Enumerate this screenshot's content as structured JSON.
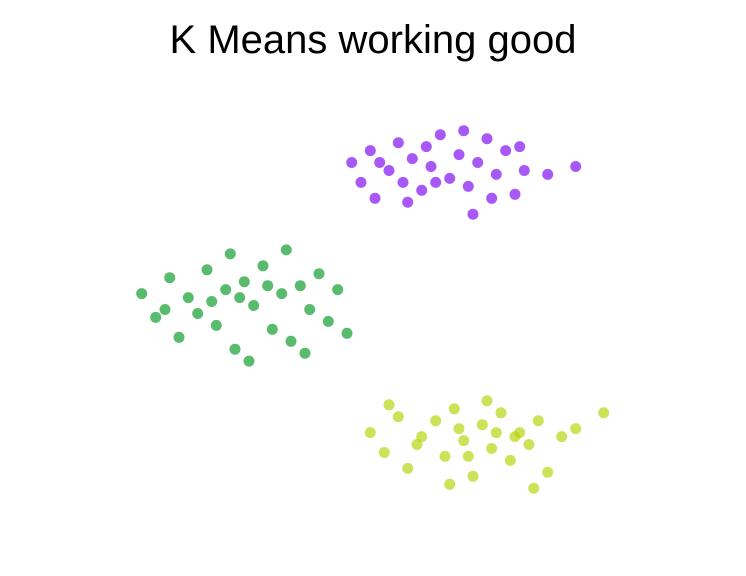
{
  "title": "K Means working good",
  "chart_data": {
    "type": "scatter",
    "title": "K Means working good",
    "xlabel": "",
    "ylabel": "",
    "grid": false,
    "axes_visible": false,
    "series": [
      {
        "color": "#7a00f0",
        "points": [
          [
            -2.0,
            3.5
          ],
          [
            -1.8,
            3.0
          ],
          [
            -1.6,
            3.8
          ],
          [
            -1.5,
            2.6
          ],
          [
            -1.2,
            3.3
          ],
          [
            -1.0,
            4.0
          ],
          [
            -0.9,
            3.0
          ],
          [
            -0.7,
            3.6
          ],
          [
            -0.5,
            2.8
          ],
          [
            -0.3,
            3.4
          ],
          [
            -0.1,
            4.2
          ],
          [
            0.1,
            3.1
          ],
          [
            0.3,
            3.7
          ],
          [
            0.5,
            2.9
          ],
          [
            0.7,
            3.5
          ],
          [
            0.9,
            4.1
          ],
          [
            1.1,
            3.2
          ],
          [
            1.3,
            3.8
          ],
          [
            1.5,
            2.7
          ],
          [
            1.7,
            3.3
          ],
          [
            -1.4,
            3.5
          ],
          [
            -0.8,
            2.5
          ],
          [
            -0.2,
            3.0
          ],
          [
            0.4,
            4.3
          ],
          [
            1.0,
            2.6
          ],
          [
            1.6,
            3.9
          ],
          [
            2.2,
            3.2
          ],
          [
            2.8,
            3.4
          ],
          [
            0.6,
            2.2
          ],
          [
            -0.4,
            3.9
          ]
        ]
      },
      {
        "color": "#00961e",
        "points": [
          [
            -6.5,
            0.2
          ],
          [
            -6.2,
            -0.4
          ],
          [
            -5.9,
            0.6
          ],
          [
            -5.7,
            -0.9
          ],
          [
            -5.5,
            0.1
          ],
          [
            -5.3,
            -0.3
          ],
          [
            -5.1,
            0.8
          ],
          [
            -4.9,
            -0.6
          ],
          [
            -4.7,
            0.3
          ],
          [
            -4.5,
            -1.2
          ],
          [
            -4.3,
            0.5
          ],
          [
            -4.1,
            -0.1
          ],
          [
            -3.9,
            0.9
          ],
          [
            -3.7,
            -0.7
          ],
          [
            -3.5,
            0.2
          ],
          [
            -3.3,
            -1.0
          ],
          [
            -3.1,
            0.4
          ],
          [
            -2.9,
            -0.2
          ],
          [
            -2.7,
            0.7
          ],
          [
            -2.5,
            -0.5
          ],
          [
            -5.0,
            0.0
          ],
          [
            -4.6,
            1.2
          ],
          [
            -4.2,
            -1.5
          ],
          [
            -3.8,
            0.4
          ],
          [
            -3.4,
            1.3
          ],
          [
            -3.0,
            -1.3
          ],
          [
            -2.3,
            0.3
          ],
          [
            -2.1,
            -0.8
          ],
          [
            -6.0,
            -0.2
          ],
          [
            -4.4,
            0.1
          ]
        ]
      },
      {
        "color": "#b4d200",
        "points": [
          [
            -1.6,
            -3.3
          ],
          [
            -1.3,
            -3.8
          ],
          [
            -1.0,
            -2.9
          ],
          [
            -0.8,
            -4.2
          ],
          [
            -0.5,
            -3.4
          ],
          [
            -0.2,
            -3.0
          ],
          [
            0.0,
            -3.9
          ],
          [
            0.2,
            -2.7
          ],
          [
            0.4,
            -3.5
          ],
          [
            0.6,
            -4.4
          ],
          [
            0.8,
            -3.1
          ],
          [
            1.0,
            -3.7
          ],
          [
            1.2,
            -2.8
          ],
          [
            1.4,
            -4.0
          ],
          [
            1.6,
            -3.3
          ],
          [
            1.8,
            -3.6
          ],
          [
            2.0,
            -3.0
          ],
          [
            2.2,
            -4.3
          ],
          [
            2.5,
            -3.4
          ],
          [
            2.8,
            -3.2
          ],
          [
            -0.6,
            -3.6
          ],
          [
            0.3,
            -3.2
          ],
          [
            0.9,
            -2.5
          ],
          [
            1.5,
            -3.4
          ],
          [
            0.1,
            -4.6
          ],
          [
            1.9,
            -4.7
          ],
          [
            3.4,
            -2.8
          ],
          [
            0.5,
            -3.9
          ],
          [
            -1.2,
            -2.6
          ],
          [
            1.1,
            -3.3
          ]
        ]
      }
    ],
    "xlim": [
      -7.5,
      4.5
    ],
    "ylim": [
      -5.5,
      5.2
    ]
  }
}
